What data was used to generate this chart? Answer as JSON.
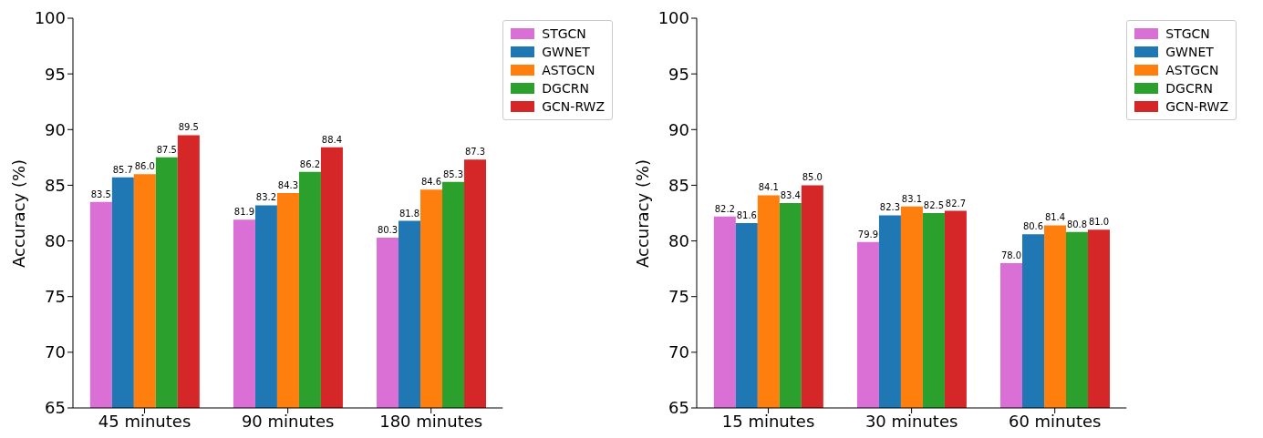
{
  "chart_data": [
    {
      "type": "bar",
      "ylabel": "Accuracy (%)",
      "categories": [
        "45 minutes",
        "90 minutes",
        "180 minutes"
      ],
      "series": [
        {
          "name": "STGCN",
          "color": "#da70d6",
          "values": [
            83.5,
            81.9,
            80.3
          ],
          "value_labels": [
            "83.5",
            "81.9",
            "80.3"
          ]
        },
        {
          "name": "GWNET",
          "color": "#1f77b4",
          "values": [
            85.7,
            83.2,
            81.8
          ],
          "value_labels": [
            "85.7",
            "83.2",
            "81.8"
          ]
        },
        {
          "name": "ASTGCN",
          "color": "#ff7f0e",
          "values": [
            86.0,
            84.3,
            84.6
          ],
          "value_labels": [
            "86.0",
            "84.3",
            "84.6"
          ]
        },
        {
          "name": "DGCRN",
          "color": "#2ca02c",
          "values": [
            87.5,
            86.2,
            85.3
          ],
          "value_labels": [
            "87.5",
            "86.2",
            "85.3"
          ]
        },
        {
          "name": "GCN-RWZ",
          "color": "#d62728",
          "values": [
            89.5,
            88.4,
            87.3
          ],
          "value_labels": [
            "89.5",
            "88.4",
            "87.3"
          ]
        }
      ],
      "ylim": [
        65,
        100
      ],
      "yticks": [
        65,
        70,
        75,
        80,
        85,
        90,
        95,
        100
      ],
      "grid": false,
      "legend": "top right"
    },
    {
      "type": "bar",
      "ylabel": "Accuracy (%)",
      "categories": [
        "15 minutes",
        "30 minutes",
        "60 minutes"
      ],
      "series": [
        {
          "name": "STGCN",
          "color": "#da70d6",
          "values": [
            82.2,
            79.9,
            78.0
          ],
          "value_labels": [
            "82.2",
            "79.9",
            "78.0"
          ]
        },
        {
          "name": "GWNET",
          "color": "#1f77b4",
          "values": [
            81.6,
            82.3,
            80.6
          ],
          "value_labels": [
            "81.6",
            "82.3",
            "80.6"
          ]
        },
        {
          "name": "ASTGCN",
          "color": "#ff7f0e",
          "values": [
            84.1,
            83.1,
            81.4
          ],
          "value_labels": [
            "84.1",
            "83.1",
            "81.4"
          ]
        },
        {
          "name": "DGCRN",
          "color": "#2ca02c",
          "values": [
            83.4,
            82.5,
            80.8
          ],
          "value_labels": [
            "83.4",
            "82.5",
            "80.8"
          ]
        },
        {
          "name": "GCN-RWZ",
          "color": "#d62728",
          "values": [
            85.0,
            82.7,
            81.0
          ],
          "value_labels": [
            "85.0",
            "82.7",
            "81.0"
          ]
        }
      ],
      "ylim": [
        65,
        100
      ],
      "yticks": [
        65,
        70,
        75,
        80,
        85,
        90,
        95,
        100
      ],
      "grid": false,
      "legend": "top right"
    }
  ]
}
